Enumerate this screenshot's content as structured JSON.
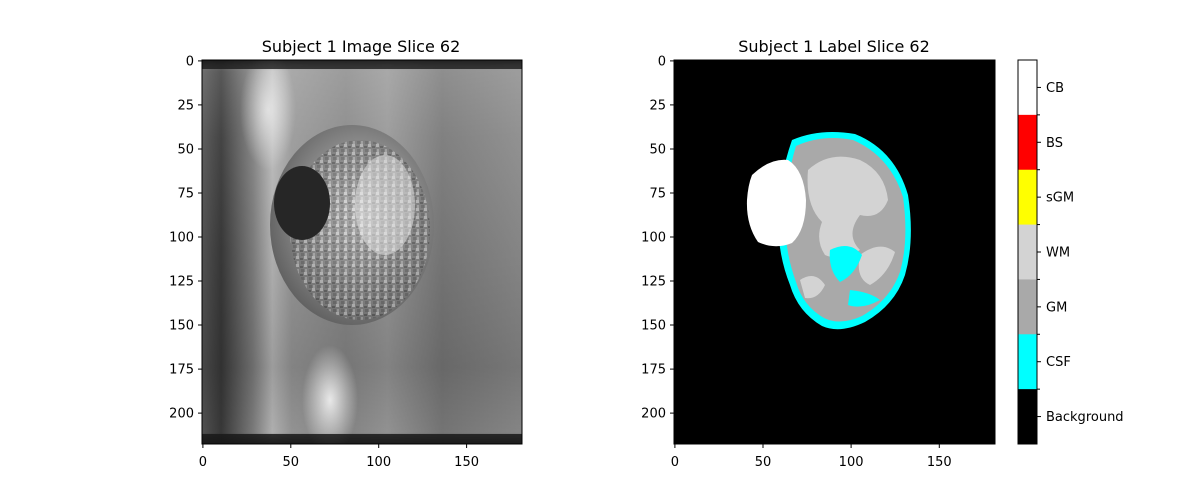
{
  "figure": {
    "left_panel": {
      "title": "Subject 1 Image Slice 62",
      "xticks": [
        "0",
        "50",
        "100",
        "150"
      ],
      "yticks": [
        "0",
        "25",
        "50",
        "75",
        "100",
        "125",
        "150",
        "175",
        "200"
      ]
    },
    "right_panel": {
      "title": "Subject 1 Label Slice 62",
      "xticks": [
        "0",
        "50",
        "100",
        "150"
      ],
      "yticks": [
        "0",
        "25",
        "50",
        "75",
        "100",
        "125",
        "150",
        "175",
        "200"
      ]
    },
    "colorbar": {
      "labels": [
        "CB",
        "BS",
        "sGM",
        "WM",
        "GM",
        "CSF",
        "Background"
      ],
      "colors": [
        "#ffffff",
        "#ff0000",
        "#ffff00",
        "#d3d3d3",
        "#a9a9a9",
        "#00ffff",
        "#000000"
      ]
    },
    "image_extent": {
      "x": [
        0,
        182
      ],
      "y": [
        0,
        218
      ]
    }
  }
}
